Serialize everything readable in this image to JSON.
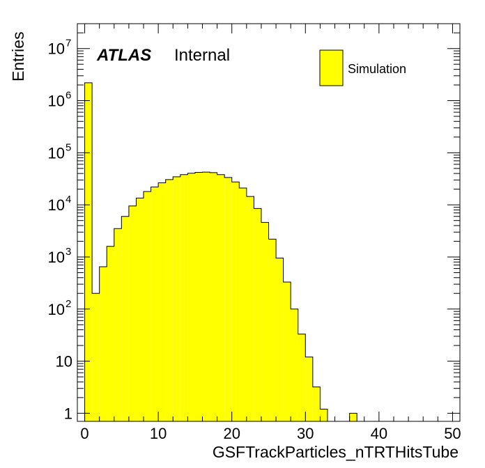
{
  "chart_data": {
    "type": "bar",
    "xlabel": "GSFTrackParticles_nTRTHitsTube",
    "ylabel": "Entries",
    "xlim": [
      -1,
      51
    ],
    "ylim": [
      0.7,
      30000000
    ],
    "y_scale": "log",
    "x_ticks": [
      0,
      10,
      20,
      30,
      40,
      50
    ],
    "y_ticks": [
      {
        "value": 1,
        "label": "1"
      },
      {
        "value": 10,
        "label": "10"
      },
      {
        "value": 100,
        "label": "10",
        "exp": "2"
      },
      {
        "value": 1000,
        "label": "10",
        "exp": "3"
      },
      {
        "value": 10000,
        "label": "10",
        "exp": "4"
      },
      {
        "value": 100000,
        "label": "10",
        "exp": "5"
      },
      {
        "value": 1000000,
        "label": "10",
        "exp": "6"
      },
      {
        "value": 10000000,
        "label": "10",
        "exp": "7"
      }
    ],
    "bin_width": 1,
    "bins": [
      -1,
      0,
      1,
      2,
      3,
      4,
      5,
      6,
      7,
      8,
      9,
      10,
      11,
      12,
      13,
      14,
      15,
      16,
      17,
      18,
      19,
      20,
      21,
      22,
      23,
      24,
      25,
      26,
      27,
      28,
      29,
      30,
      31,
      32,
      33,
      34,
      35,
      36,
      37,
      38,
      39,
      40,
      41,
      42,
      43,
      44,
      45,
      46,
      47,
      48,
      49,
      50
    ],
    "values": [
      0,
      2200000,
      200,
      650,
      1600,
      3500,
      6000,
      9500,
      13500,
      18000,
      22000,
      26500,
      30500,
      34500,
      38000,
      40500,
      42000,
      42500,
      41500,
      38000,
      33500,
      27500,
      21000,
      14500,
      8500,
      4600,
      2200,
      950,
      330,
      100,
      33,
      12,
      3.2,
      1.2,
      0,
      0,
      0,
      1,
      0,
      0,
      0,
      0,
      0,
      0,
      0,
      0,
      0,
      0,
      0,
      0,
      0,
      0
    ],
    "series": [
      {
        "name": "Simulation"
      }
    ],
    "legend": "top-right",
    "fill_color": "#ffff00",
    "line_color": "#000000",
    "grid": false
  },
  "label": {
    "experiment": "ATLAS",
    "status": "Internal"
  }
}
